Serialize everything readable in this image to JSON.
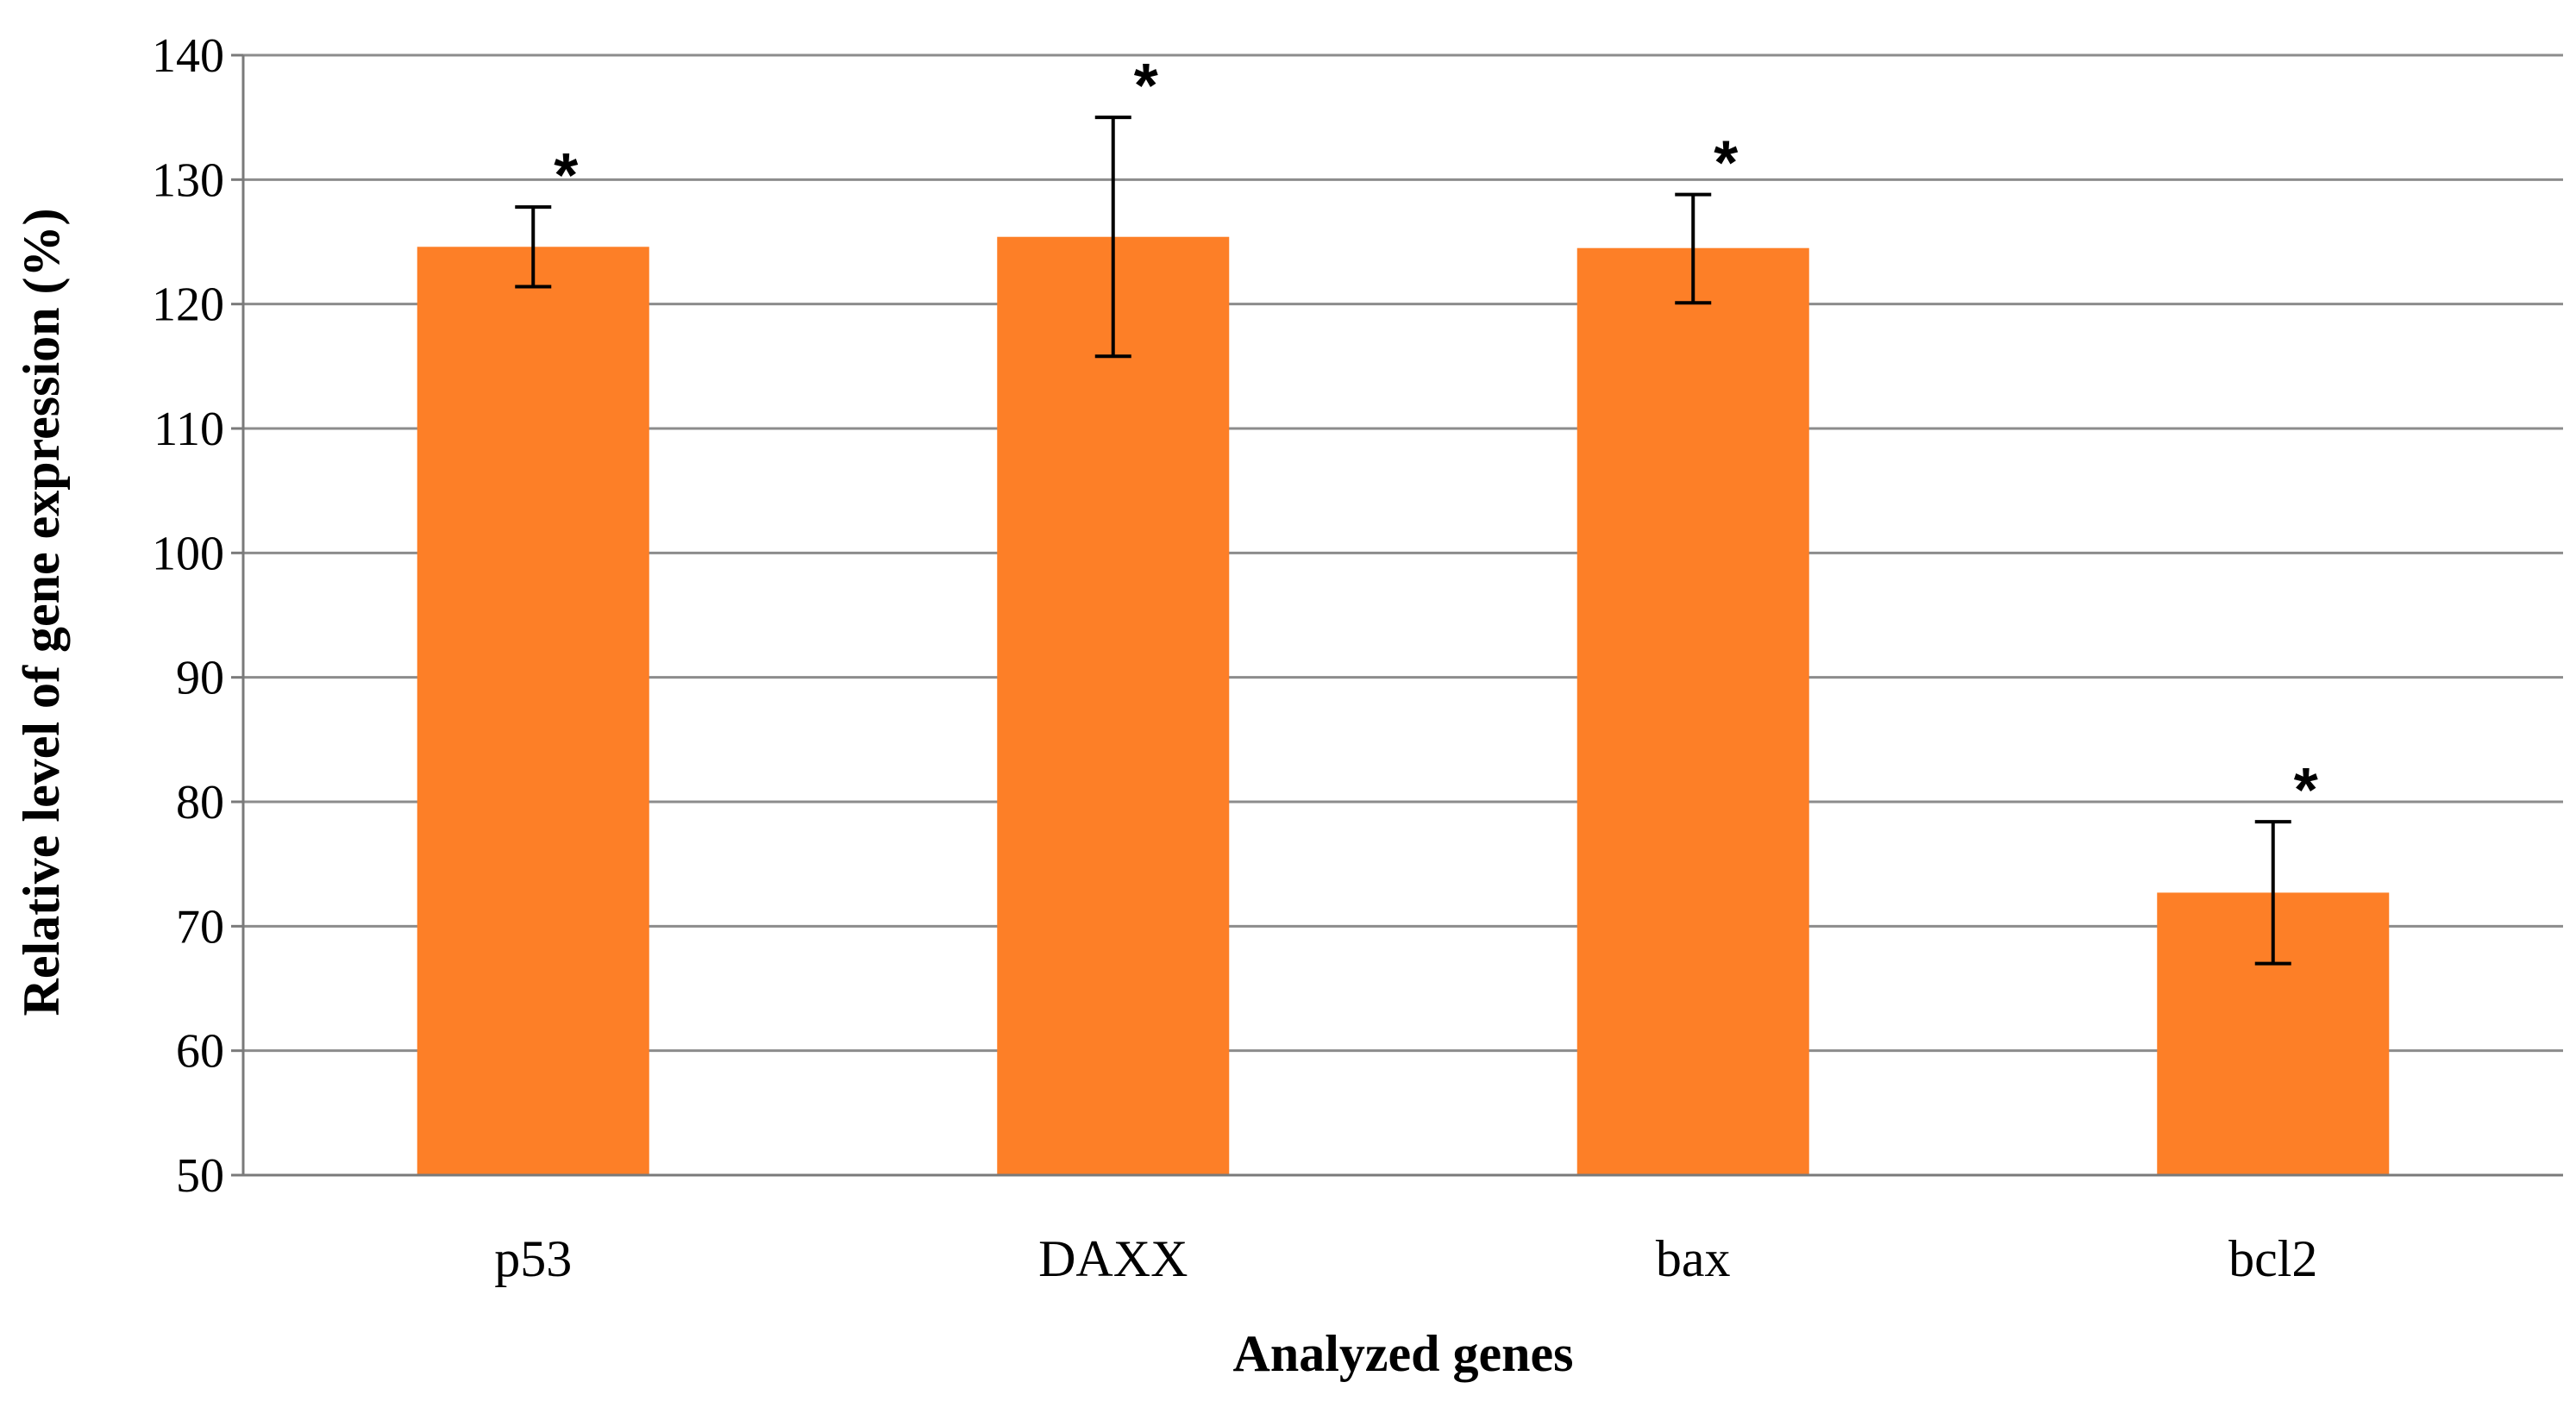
{
  "chart_data": {
    "type": "bar",
    "title": "",
    "xlabel": "Analyzed genes",
    "ylabel": "Relative level of gene expression (%)",
    "ylim": [
      50,
      140
    ],
    "y_ticks": [
      50,
      60,
      70,
      80,
      90,
      100,
      110,
      120,
      130,
      140
    ],
    "y_tick_labels": [
      "50",
      "60",
      "70",
      "80",
      "90",
      "100",
      "110",
      "120",
      "130",
      "140"
    ],
    "grid": true,
    "legend": "none",
    "categories": [
      "p53",
      "DAXX",
      "bax",
      "bcl2"
    ],
    "series": [
      {
        "name": "Relative level of gene expression",
        "values": [
          124.6,
          125.4,
          124.5,
          72.7
        ],
        "error_low": [
          121.4,
          115.8,
          120.1,
          67.0
        ],
        "error_high": [
          127.8,
          135.0,
          128.8,
          78.4
        ],
        "color": "#FD7F27"
      }
    ],
    "annotations": [
      "*",
      "*",
      "*",
      "*"
    ]
  }
}
